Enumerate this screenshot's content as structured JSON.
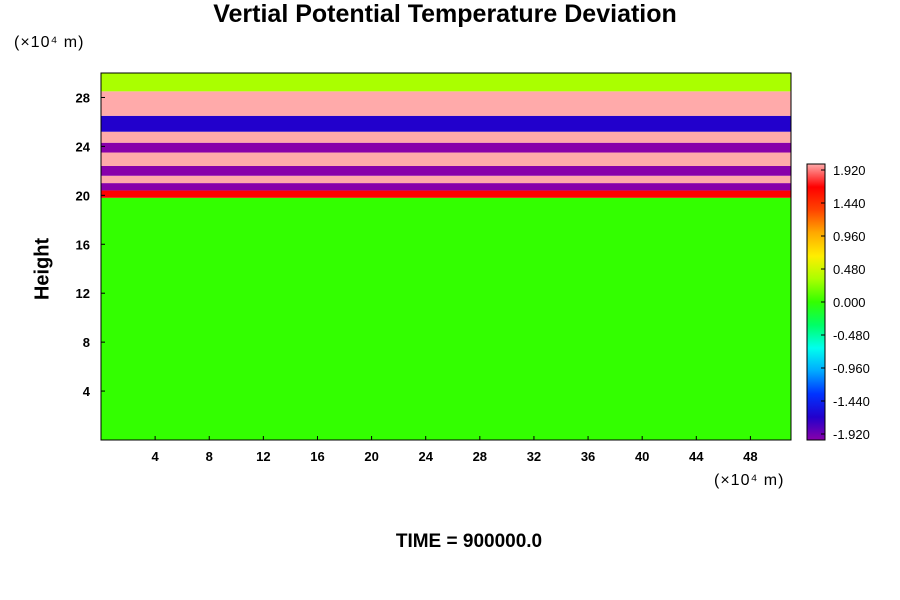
{
  "chart_data": {
    "type": "heatmap",
    "title": "Vertial Potential Temperature Deviation",
    "xlabel": "",
    "ylabel": "Height",
    "x_unit": "(×10⁴ m)",
    "y_unit": "(×10⁴ m)",
    "xlim": [
      0,
      51
    ],
    "ylim": [
      0,
      30
    ],
    "x_ticks": [
      4,
      8,
      12,
      16,
      20,
      24,
      28,
      32,
      36,
      40,
      44,
      48
    ],
    "y_ticks": [
      4,
      8,
      12,
      16,
      20,
      24,
      28
    ],
    "colorbar": {
      "ticks": [
        "1.920",
        "1.440",
        "0.960",
        "0.480",
        "0.000",
        "-0.480",
        "-0.960",
        "-1.440",
        "-1.920"
      ],
      "min": -1.92,
      "max": 1.92
    },
    "field_bands": [
      {
        "y_range": [
          0,
          19.8
        ],
        "value": 0.0
      },
      {
        "y_range": [
          19.8,
          20.4
        ],
        "value": 1.6
      },
      {
        "y_range": [
          20.4,
          21.0
        ],
        "value": -1.9
      },
      {
        "y_range": [
          21.0,
          21.6
        ],
        "value": 1.9
      },
      {
        "y_range": [
          21.6,
          22.4
        ],
        "value": -1.9
      },
      {
        "y_range": [
          22.4,
          23.5
        ],
        "value": 1.9
      },
      {
        "y_range": [
          23.5,
          24.3
        ],
        "value": -1.9
      },
      {
        "y_range": [
          24.3,
          25.2
        ],
        "value": 1.9
      },
      {
        "y_range": [
          25.2,
          26.5
        ],
        "value": -1.7
      },
      {
        "y_range": [
          26.5,
          28.5
        ],
        "value": 1.9
      },
      {
        "y_range": [
          28.5,
          30
        ],
        "value": 0.3
      }
    ],
    "grid": false,
    "legend": "right"
  },
  "footer": {
    "label": "TIME = 900000.0"
  },
  "colors": {
    "scale": [
      "#8800aa",
      "#2200cc",
      "#0033ff",
      "#00aaff",
      "#00ffee",
      "#00ff66",
      "#33ff00",
      "#aaff00",
      "#ffee00",
      "#ffaa00",
      "#ff4400",
      "#ff0000",
      "#ffaaaa"
    ]
  }
}
